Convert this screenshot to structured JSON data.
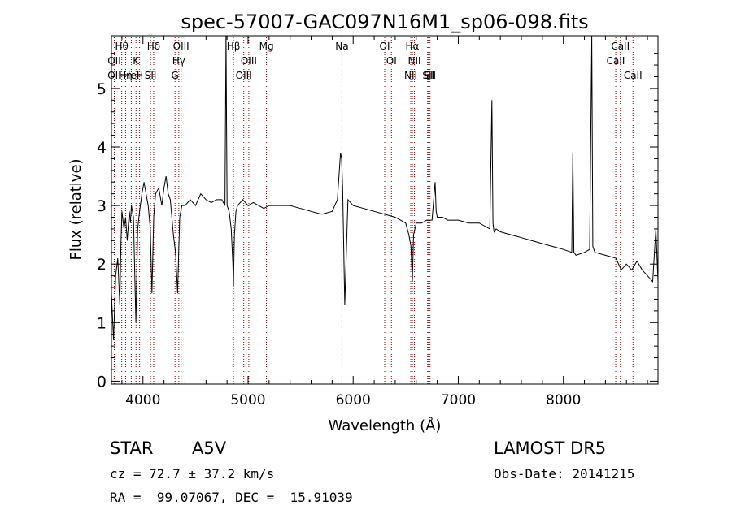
{
  "chart_data": {
    "type": "line",
    "title": "spec-57007-GAC097N16M1_sp06-098.fits",
    "xlabel": "Wavelength (Å)",
    "ylabel": "Flux (relative)",
    "xlim": [
      3700,
      8900
    ],
    "ylim": [
      -0.05,
      5.9
    ],
    "xticks": [
      4000,
      5000,
      6000,
      7000,
      8000
    ],
    "yticks": [
      0,
      1,
      2,
      3,
      4,
      5
    ],
    "grid": false,
    "series": [
      {
        "x": [
          3700,
          3720,
          3740,
          3760,
          3780,
          3790,
          3800,
          3820,
          3835,
          3850,
          3870,
          3880,
          3890,
          3910,
          3933,
          3950,
          3968,
          3990,
          4010,
          4030,
          4050,
          4070,
          4085,
          4102,
          4120,
          4150,
          4180,
          4200,
          4220,
          4240,
          4260,
          4290,
          4310,
          4330,
          4340,
          4350,
          4370,
          4400,
          4450,
          4500,
          4550,
          4600,
          4650,
          4700,
          4750,
          4780,
          4790,
          4800,
          4820,
          4840,
          4855,
          4861,
          4870,
          4885,
          4900,
          4950,
          5000,
          5050,
          5100,
          5150,
          5200,
          5300,
          5400,
          5500,
          5600,
          5700,
          5800,
          5850,
          5880,
          5890,
          5900,
          5920,
          5950,
          6000,
          6100,
          6200,
          6300,
          6400,
          6450,
          6500,
          6530,
          6550,
          6563,
          6575,
          6600,
          6650,
          6700,
          6750,
          6780,
          6790,
          6800,
          6850,
          6900,
          7000,
          7100,
          7200,
          7300,
          7320,
          7330,
          7340,
          7360,
          7400,
          7500,
          7600,
          7700,
          7800,
          7900,
          8000,
          8080,
          8090,
          8100,
          8120,
          8200,
          8250,
          8270,
          8280,
          8300,
          8400,
          8500,
          8550,
          8600,
          8650,
          8700,
          8750,
          8800,
          8850,
          8880,
          8900
        ],
        "values": [
          1.5,
          0.7,
          1.8,
          2.1,
          1.3,
          2.3,
          2.9,
          2.6,
          2.8,
          2.4,
          2.9,
          2.7,
          3.0,
          2.8,
          1.0,
          2.6,
          2.9,
          3.2,
          3.4,
          3.2,
          3.0,
          2.6,
          1.5,
          2.8,
          3.2,
          3.3,
          3.0,
          3.3,
          3.5,
          3.2,
          3.1,
          2.5,
          2.2,
          1.5,
          2.2,
          2.8,
          3.0,
          3.0,
          3.1,
          3.0,
          3.2,
          3.1,
          3.05,
          3.1,
          3.1,
          3.0,
          5.9,
          3.0,
          2.9,
          2.6,
          2.0,
          1.6,
          2.5,
          2.9,
          3.0,
          3.1,
          3.0,
          3.05,
          3.0,
          2.95,
          3.0,
          3.0,
          3.0,
          2.95,
          2.9,
          2.85,
          2.9,
          3.1,
          3.9,
          3.8,
          3.3,
          1.3,
          3.1,
          3.0,
          2.95,
          2.9,
          2.85,
          2.8,
          2.75,
          2.7,
          2.5,
          2.3,
          1.7,
          2.5,
          2.7,
          2.7,
          2.75,
          2.75,
          3.4,
          2.9,
          2.8,
          2.8,
          2.75,
          2.75,
          2.7,
          2.7,
          2.6,
          4.8,
          2.7,
          2.55,
          2.6,
          2.55,
          2.5,
          2.45,
          2.4,
          2.35,
          2.3,
          2.25,
          2.2,
          3.9,
          2.2,
          2.15,
          2.2,
          2.25,
          5.9,
          2.3,
          2.2,
          2.15,
          2.1,
          1.9,
          2.0,
          1.9,
          2.05,
          1.9,
          1.8,
          1.7,
          2.6,
          1.7
        ]
      }
    ],
    "lines": [
      {
        "label": "Hθ",
        "x": 3798
      },
      {
        "label": "OII",
        "x": 3727
      },
      {
        "label": "OII",
        "x": 3727
      },
      {
        "label": "Hη",
        "x": 3835
      },
      {
        "label": "K",
        "x": 3934
      },
      {
        "label": "HeI",
        "x": 3889
      },
      {
        "label": "H",
        "x": 3968
      },
      {
        "label": "Hδ",
        "x": 4102
      },
      {
        "label": "SII",
        "x": 4072
      },
      {
        "label": "OIII",
        "x": 4363
      },
      {
        "label": "Hγ",
        "x": 4341
      },
      {
        "label": "G",
        "x": 4305
      },
      {
        "label": "Hβ",
        "x": 4861
      },
      {
        "label": "OIII",
        "x": 5007
      },
      {
        "label": "OIII",
        "x": 4959
      },
      {
        "label": "Mg",
        "x": 5175
      },
      {
        "label": "Na",
        "x": 5893
      },
      {
        "label": "OI",
        "x": 6300
      },
      {
        "label": "OI",
        "x": 6364
      },
      {
        "label": "Hα",
        "x": 6563
      },
      {
        "label": "NII",
        "x": 6548
      },
      {
        "label": "NII",
        "x": 6583
      },
      {
        "label": "SII",
        "x": 6716
      },
      {
        "label": "Li",
        "x": 6708
      },
      {
        "label": "SII",
        "x": 6731
      },
      {
        "label": "CaII",
        "x": 8542
      },
      {
        "label": "CaII",
        "x": 8498
      },
      {
        "label": "CaII",
        "x": 8662
      }
    ]
  },
  "info": {
    "obj_class": "STAR",
    "subclass": "A5V",
    "survey": "LAMOST DR5",
    "cz": "cz = 72.7 ± 37.2 km/s",
    "obs_date": "Obs-Date: 20141215",
    "radec": "RA =  99.07067, DEC =  15.91039"
  },
  "colors": {
    "spectrum": "#000000",
    "line_markers": "#8b0000",
    "axes": "#000000"
  }
}
